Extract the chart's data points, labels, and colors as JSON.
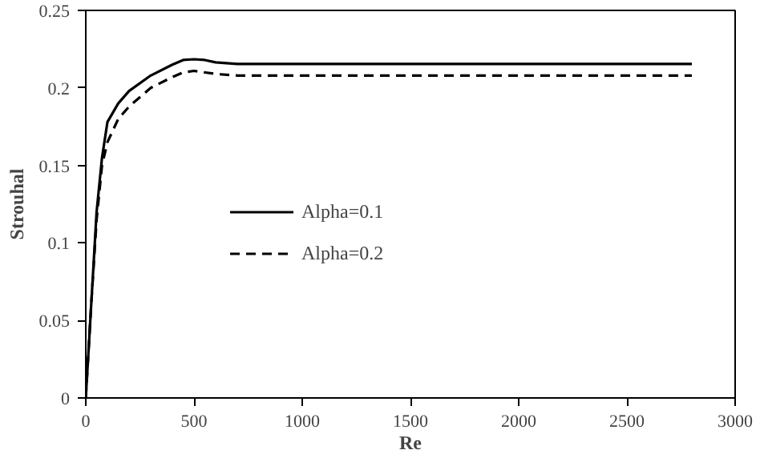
{
  "chart_data": {
    "type": "line",
    "xlabel": "Re",
    "ylabel": "Strouhal",
    "xlim": [
      0,
      3000
    ],
    "xticks": [
      0,
      500,
      1000,
      1500,
      2000,
      2500,
      3000
    ],
    "ylim": [
      0,
      0.25
    ],
    "yticks": [
      0,
      0.05,
      0.1,
      0.15,
      0.2,
      0.25
    ],
    "grid": false,
    "legend": "left",
    "marker": "none",
    "series": [
      {
        "name": "Alpha=0.1",
        "color": "#000000",
        "line_style": "solid",
        "x": [
          0,
          25,
          50,
          75,
          100,
          150,
          200,
          300,
          400,
          450,
          500,
          550,
          600,
          700,
          1000,
          2800
        ],
        "values": [
          0,
          0.06,
          0.12,
          0.155,
          0.178,
          0.19,
          0.198,
          0.208,
          0.215,
          0.218,
          0.2185,
          0.218,
          0.2165,
          0.2155,
          0.2155,
          0.2155
        ]
      },
      {
        "name": "Alpha=0.2",
        "color": "#000000",
        "line_style": "dashed",
        "x": [
          0,
          25,
          50,
          75,
          100,
          150,
          200,
          300,
          400,
          450,
          500,
          600,
          700,
          1000,
          2800
        ],
        "values": [
          0,
          0.06,
          0.115,
          0.15,
          0.165,
          0.18,
          0.188,
          0.2,
          0.207,
          0.21,
          0.211,
          0.209,
          0.208,
          0.208,
          0.208
        ]
      }
    ]
  }
}
